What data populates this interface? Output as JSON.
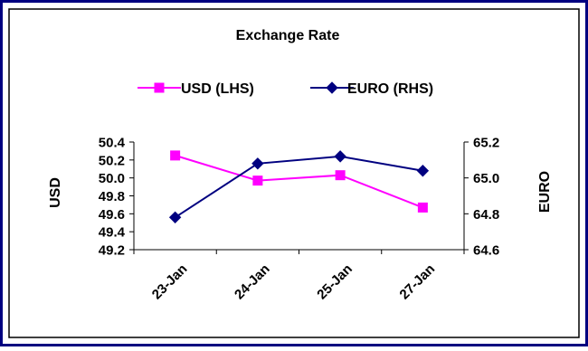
{
  "chart_data": {
    "type": "line",
    "title": "Exchange Rate",
    "categories": [
      "23-Jan",
      "24-Jan",
      "25-Jan",
      "27-Jan"
    ],
    "series": [
      {
        "name": "USD (LHS)",
        "axis": "left",
        "color": "#FF00FF",
        "marker": "square",
        "values": [
          50.25,
          49.97,
          50.03,
          49.67
        ]
      },
      {
        "name": "EURO (RHS)",
        "axis": "right",
        "color": "#000080",
        "marker": "diamond",
        "values": [
          64.78,
          65.08,
          65.12,
          65.04
        ]
      }
    ],
    "ylabel": "USD",
    "ylabel_right": "EURO",
    "ylim": [
      49.2,
      50.4
    ],
    "ylim_right": [
      64.6,
      65.2
    ],
    "yticks": [
      "50.4",
      "50.2",
      "50.0",
      "49.8",
      "49.6",
      "49.4",
      "49.2"
    ],
    "yticks_right": [
      "65.2",
      "65.0",
      "64.8",
      "64.6"
    ],
    "legend_position": "top",
    "grid": false
  },
  "colors": {
    "frame": "#000080",
    "background": "#FFFFFF"
  }
}
